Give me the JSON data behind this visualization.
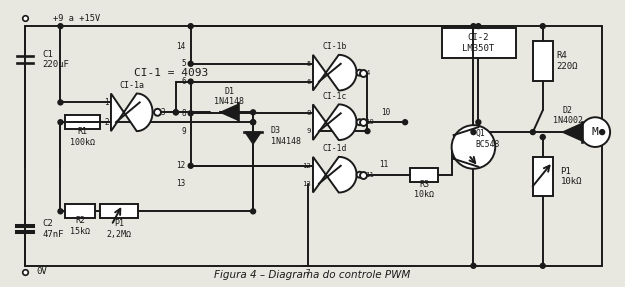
{
  "bg_color": "#e8e8e0",
  "line_color": "#1a1a1a",
  "lw": 1.4,
  "title": "Figura 4 – Diagrama do controle PWM",
  "components": {
    "CI1_label": "CI-1 = 4093",
    "CI2_label": "CI-2\nLM350T",
    "C1_label": "C1\n220μF",
    "C2_label": "C2\n47nF",
    "R1_label": "R1\n100kΩ",
    "R2_label": "R2\n15kΩ",
    "R3_label": "R3\n10kΩ",
    "R4_label": "R4\n220Ω",
    "P1a_label": "P1\n2,2MΩ",
    "P1b_label": "P1\n10kΩ",
    "D1_label": "D1\n1N4148",
    "D2_label": "D2\n1N4002",
    "D3_label": "D3\n1N4148",
    "Q1_label": "Q1\nBC548",
    "CI1a_label": "CI-1a",
    "CI1b_label": "CI-1b",
    "CI1c_label": "CI-1c",
    "CI1d_label": "CI-1d",
    "vcc_label": "+9 a +15V",
    "gnd_label": "0V",
    "M_label": "M"
  }
}
